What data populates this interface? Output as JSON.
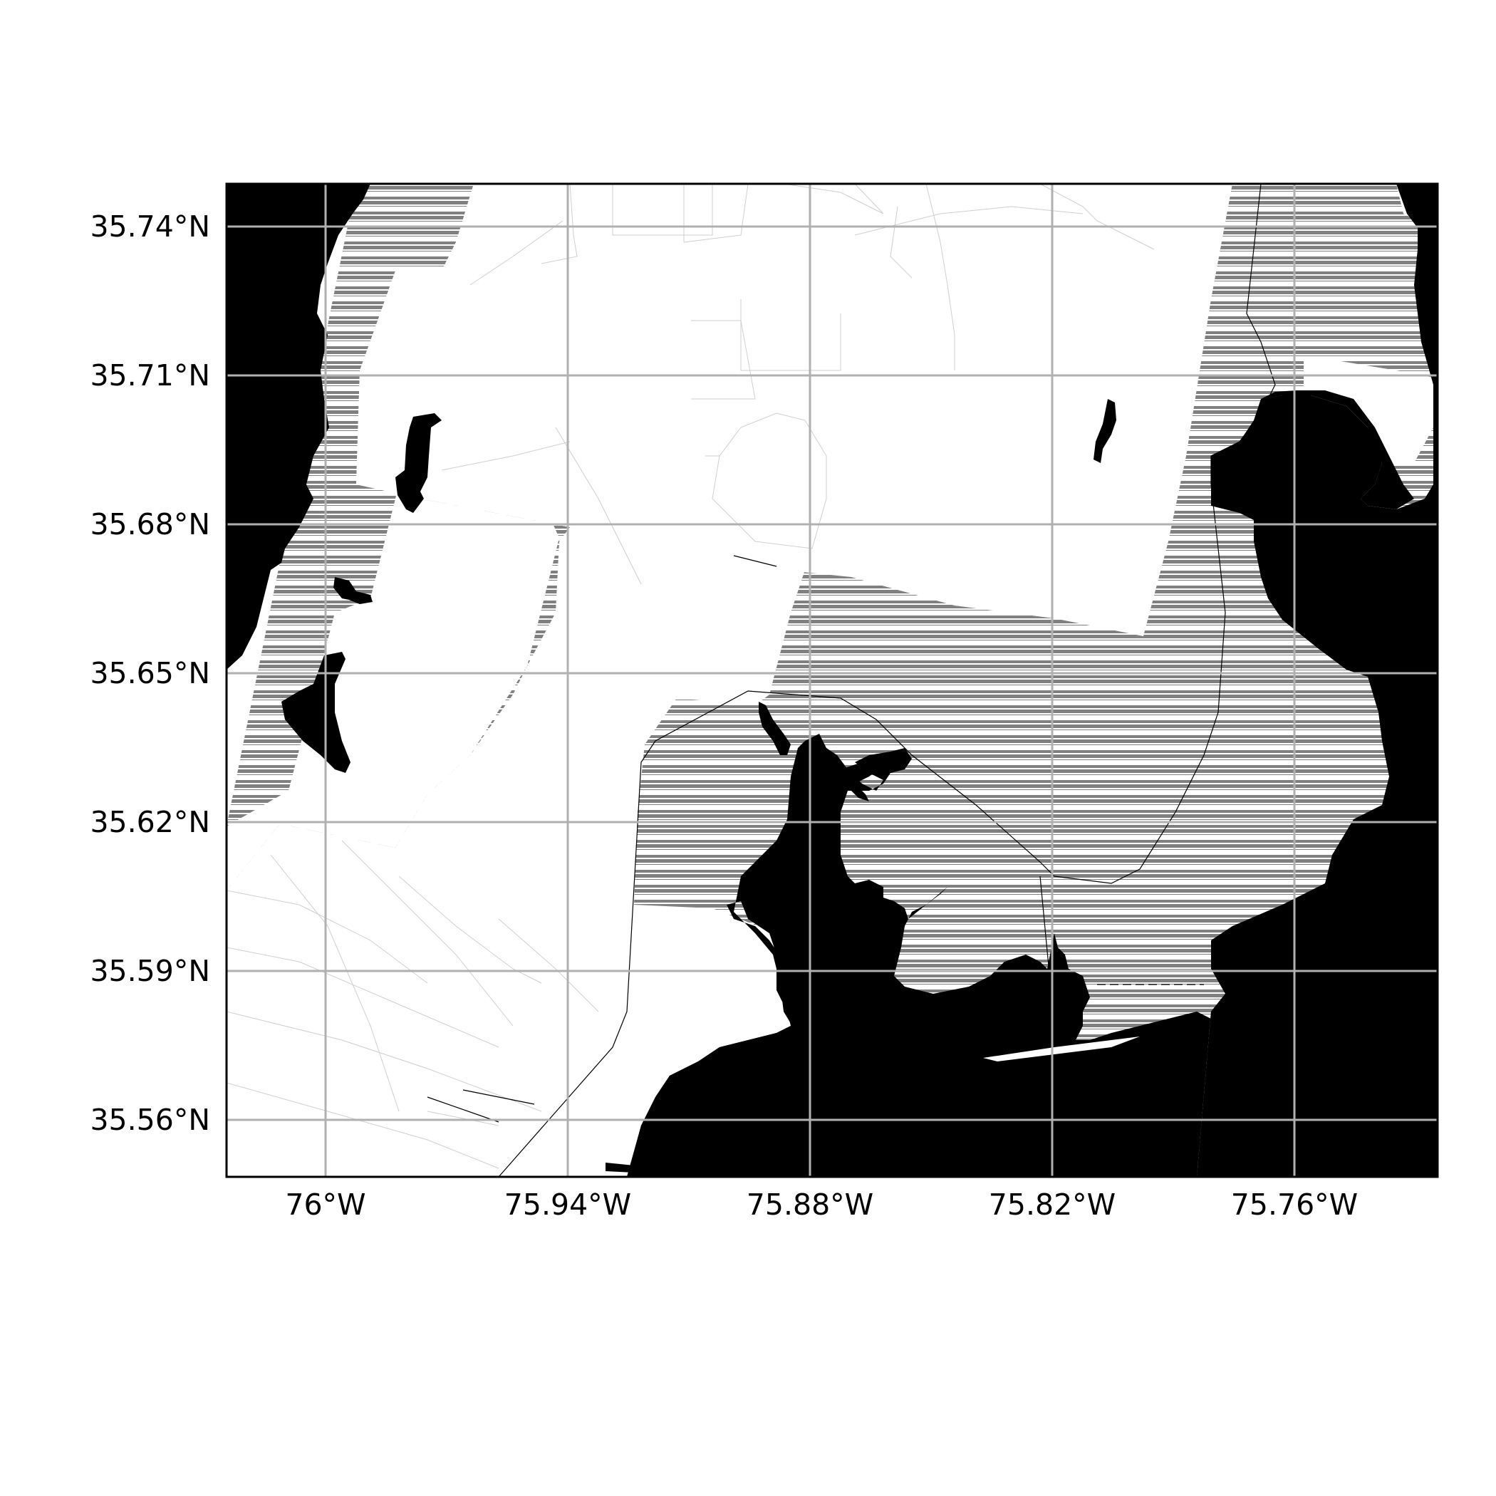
{
  "map": {
    "x_ticks": [
      "76°W",
      "75.94°W",
      "75.88°W",
      "75.82°W",
      "75.76°W"
    ],
    "y_ticks": [
      "35.74°N",
      "35.71°N",
      "35.68°N",
      "35.65°N",
      "35.62°N",
      "35.59°N",
      "35.56°N"
    ],
    "colors": {
      "land": "#000000",
      "water_stripe": "#808080",
      "grid": "#b0b0b0",
      "background": "#ffffff"
    }
  }
}
